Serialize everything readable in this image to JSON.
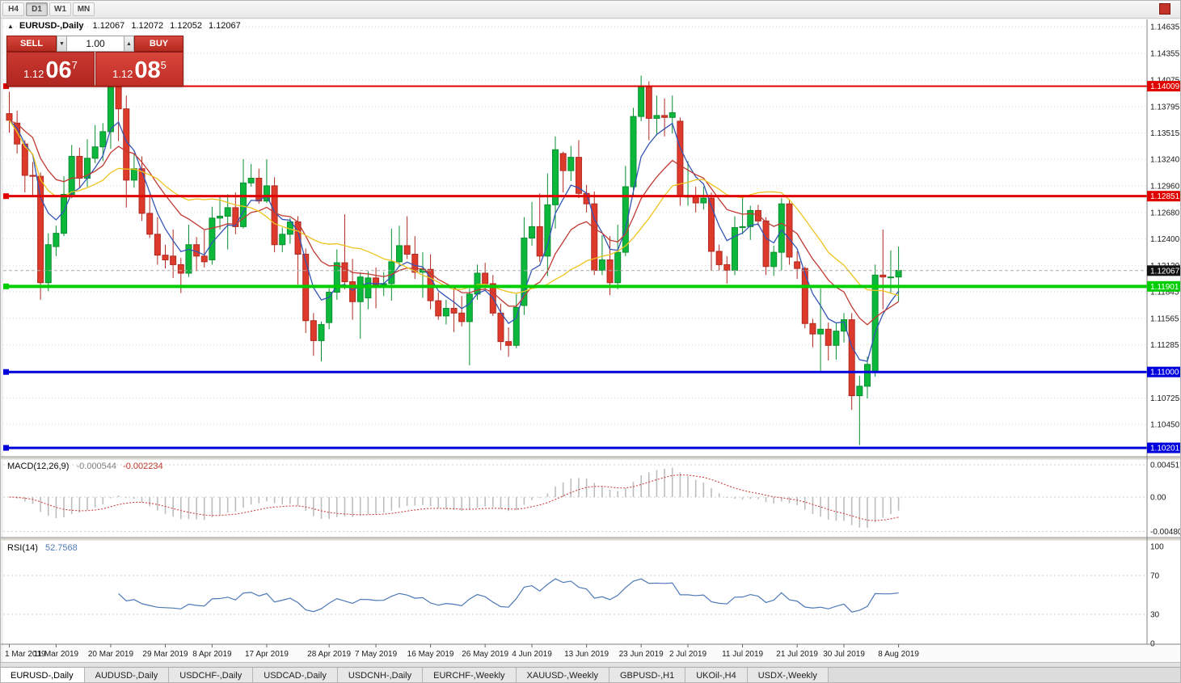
{
  "toolbar": {
    "timeframes": [
      "H4",
      "D1",
      "W1",
      "MN"
    ],
    "active": "D1"
  },
  "chart_title": {
    "symbol": "EURUSD-,Daily",
    "open": "1.12067",
    "high": "1.12072",
    "low": "1.12052",
    "close": "1.12067"
  },
  "trade_panel": {
    "sell_label": "SELL",
    "buy_label": "BUY",
    "volume": "1.00",
    "bid": {
      "big": "1.12",
      "pips": "06",
      "pipette": "7"
    },
    "ask": {
      "big": "1.12",
      "pips": "08",
      "pipette": "5"
    }
  },
  "indicators": {
    "macd_name": "MACD(12,26,9)",
    "macd_main": "-0.000544",
    "macd_signal": "-0.002234",
    "rsi_name": "RSI(14)",
    "rsi_value": "52.7568"
  },
  "tabs": [
    {
      "label": "EURUSD-,Daily",
      "active": true
    },
    {
      "label": "AUDUSD-,Daily",
      "active": false
    },
    {
      "label": "USDCHF-,Daily",
      "active": false
    },
    {
      "label": "USDCAD-,Daily",
      "active": false
    },
    {
      "label": "USDCNH-,Daily",
      "active": false
    },
    {
      "label": "EURCHF-,Weekly",
      "active": false
    },
    {
      "label": "XAUUSD-,Weekly",
      "active": false
    },
    {
      "label": "GBPUSD-,H1",
      "active": false
    },
    {
      "label": "UKOil-,H4",
      "active": false
    },
    {
      "label": "USDX-,Weekly",
      "active": false
    }
  ],
  "chart_data": {
    "type": "candlestick",
    "symbol": "EURUSD-",
    "timeframe": "Daily",
    "colors": {
      "up": "#0cb83c",
      "down": "#dd3a2c",
      "up_stroke": "#0a8f30",
      "down_stroke": "#b02a20",
      "grid": "#d9d9d9",
      "macd_hist": "#bdbdbd",
      "macd_signal": "#d04040",
      "rsi_line": "#4e79b6",
      "current_badge": "#111111"
    },
    "y_ticks": [
      "1.14635",
      "1.14355",
      "1.14075",
      "1.13795",
      "1.13515",
      "1.13240",
      "1.12960",
      "1.12680",
      "1.12400",
      "1.12120",
      "1.11845",
      "1.11565",
      "1.11285",
      "1.11005",
      "1.10725",
      "1.10450"
    ],
    "x_labels": [
      {
        "i": 0,
        "text": "1 Mar 2019"
      },
      {
        "i": 6,
        "text": "11 Mar 2019"
      },
      {
        "i": 13,
        "text": "20 Mar 2019"
      },
      {
        "i": 20,
        "text": "29 Mar 2019"
      },
      {
        "i": 26,
        "text": "8 Apr 2019"
      },
      {
        "i": 33,
        "text": "17 Apr 2019"
      },
      {
        "i": 41,
        "text": "28 Apr 2019"
      },
      {
        "i": 47,
        "text": "7 May 2019"
      },
      {
        "i": 54,
        "text": "16 May 2019"
      },
      {
        "i": 61,
        "text": "26 May 2019"
      },
      {
        "i": 67,
        "text": "4 Jun 2019"
      },
      {
        "i": 74,
        "text": "13 Jun 2019"
      },
      {
        "i": 81,
        "text": "23 Jun 2019"
      },
      {
        "i": 87,
        "text": "2 Jul 2019"
      },
      {
        "i": 94,
        "text": "11 Jul 2019"
      },
      {
        "i": 101,
        "text": "21 Jul 2019"
      },
      {
        "i": 107,
        "text": "30 Jul 2019"
      },
      {
        "i": 114,
        "text": "8 Aug 2019"
      }
    ],
    "candles": [
      [
        1.1372,
        1.1395,
        1.1352,
        1.1365
      ],
      [
        1.1362,
        1.1375,
        1.133,
        1.134
      ],
      [
        1.134,
        1.1344,
        1.1289,
        1.1307
      ],
      [
        1.1307,
        1.1321,
        1.1285,
        1.1306
      ],
      [
        1.1306,
        1.131,
        1.1176,
        1.1194
      ],
      [
        1.1194,
        1.1246,
        1.1185,
        1.1234
      ],
      [
        1.1232,
        1.1254,
        1.1222,
        1.1246
      ],
      [
        1.1246,
        1.1306,
        1.1243,
        1.1287
      ],
      [
        1.1287,
        1.1339,
        1.1283,
        1.1327
      ],
      [
        1.1327,
        1.1336,
        1.1294,
        1.1304
      ],
      [
        1.1304,
        1.1345,
        1.1295,
        1.1325
      ],
      [
        1.1325,
        1.136,
        1.132,
        1.1337
      ],
      [
        1.1337,
        1.1362,
        1.1322,
        1.1353
      ],
      [
        1.1353,
        1.142,
        1.1335,
        1.1413
      ],
      [
        1.1413,
        1.1418,
        1.1343,
        1.1377
      ],
      [
        1.1377,
        1.1391,
        1.1273,
        1.1302
      ],
      [
        1.1302,
        1.133,
        1.1294,
        1.1314
      ],
      [
        1.1314,
        1.1327,
        1.1259,
        1.1267
      ],
      [
        1.1267,
        1.1287,
        1.1241,
        1.1245
      ],
      [
        1.1245,
        1.1263,
        1.1213,
        1.1223
      ],
      [
        1.1223,
        1.1234,
        1.1209,
        1.1218
      ],
      [
        1.1222,
        1.125,
        1.1199,
        1.1213
      ],
      [
        1.1213,
        1.122,
        1.1183,
        1.1204
      ],
      [
        1.1204,
        1.1255,
        1.12,
        1.1234
      ],
      [
        1.1234,
        1.1242,
        1.1206,
        1.1222
      ],
      [
        1.1222,
        1.1249,
        1.121,
        1.1216
      ],
      [
        1.1218,
        1.1274,
        1.1213,
        1.1262
      ],
      [
        1.1262,
        1.1284,
        1.125,
        1.1264
      ],
      [
        1.1264,
        1.1287,
        1.1229,
        1.1273
      ],
      [
        1.1273,
        1.1289,
        1.1245,
        1.1253
      ],
      [
        1.1253,
        1.1324,
        1.1251,
        1.1299
      ],
      [
        1.1299,
        1.1319,
        1.1295,
        1.1304
      ],
      [
        1.1304,
        1.1314,
        1.1277,
        1.128
      ],
      [
        1.128,
        1.1324,
        1.1278,
        1.1296
      ],
      [
        1.1296,
        1.1305,
        1.1226,
        1.1234
      ],
      [
        1.1234,
        1.1252,
        1.1226,
        1.1245
      ],
      [
        1.1245,
        1.1262,
        1.1235,
        1.1258
      ],
      [
        1.1258,
        1.1264,
        1.1192,
        1.1224
      ],
      [
        1.1224,
        1.123,
        1.1141,
        1.1154
      ],
      [
        1.1154,
        1.1162,
        1.1117,
        1.1133
      ],
      [
        1.1133,
        1.1153,
        1.1111,
        1.115
      ],
      [
        1.1152,
        1.1188,
        1.1145,
        1.1184
      ],
      [
        1.1184,
        1.1229,
        1.1176,
        1.1215
      ],
      [
        1.1215,
        1.1266,
        1.1187,
        1.1195
      ],
      [
        1.1195,
        1.1219,
        1.1155,
        1.1174
      ],
      [
        1.1174,
        1.1205,
        1.1135,
        1.12
      ],
      [
        1.1178,
        1.1206,
        1.1166,
        1.1199
      ],
      [
        1.1199,
        1.121,
        1.1167,
        1.1192
      ],
      [
        1.1192,
        1.1205,
        1.118,
        1.1193
      ],
      [
        1.1193,
        1.1251,
        1.1175,
        1.1216
      ],
      [
        1.1216,
        1.1254,
        1.1211,
        1.1233
      ],
      [
        1.1233,
        1.1264,
        1.1219,
        1.1224
      ],
      [
        1.1224,
        1.1243,
        1.1198,
        1.1205
      ],
      [
        1.1205,
        1.1226,
        1.1178,
        1.1208
      ],
      [
        1.1208,
        1.1224,
        1.1166,
        1.1175
      ],
      [
        1.1175,
        1.1184,
        1.1155,
        1.1159
      ],
      [
        1.1159,
        1.1176,
        1.115,
        1.1167
      ],
      [
        1.1167,
        1.1188,
        1.1142,
        1.1162
      ],
      [
        1.1162,
        1.118,
        1.1148,
        1.1153
      ],
      [
        1.1153,
        1.1188,
        1.1107,
        1.1182
      ],
      [
        1.1182,
        1.1213,
        1.1176,
        1.1204
      ],
      [
        1.1204,
        1.1215,
        1.1187,
        1.1193
      ],
      [
        1.1193,
        1.1202,
        1.1159,
        1.1162
      ],
      [
        1.1162,
        1.1172,
        1.1123,
        1.1132
      ],
      [
        1.1132,
        1.1147,
        1.1116,
        1.1128
      ],
      [
        1.1128,
        1.1182,
        1.1125,
        1.1168
      ],
      [
        1.117,
        1.1263,
        1.116,
        1.1241
      ],
      [
        1.1241,
        1.1279,
        1.1233,
        1.1253
      ],
      [
        1.1253,
        1.1288,
        1.1216,
        1.1222
      ],
      [
        1.1222,
        1.1309,
        1.1201,
        1.1276
      ],
      [
        1.1276,
        1.1348,
        1.1251,
        1.1334
      ],
      [
        1.133,
        1.1332,
        1.1289,
        1.1312
      ],
      [
        1.1312,
        1.1338,
        1.1301,
        1.1326
      ],
      [
        1.1326,
        1.1344,
        1.1283,
        1.1288
      ],
      [
        1.1288,
        1.1297,
        1.1268,
        1.1277
      ],
      [
        1.1277,
        1.129,
        1.1202,
        1.1207
      ],
      [
        1.1207,
        1.1244,
        1.1202,
        1.1218
      ],
      [
        1.1218,
        1.1243,
        1.1181,
        1.1194
      ],
      [
        1.1194,
        1.1255,
        1.1187,
        1.1226
      ],
      [
        1.1226,
        1.1317,
        1.1222,
        1.1295
      ],
      [
        1.1295,
        1.1378,
        1.1285,
        1.1369
      ],
      [
        1.1369,
        1.1412,
        1.1364,
        1.14
      ],
      [
        1.14,
        1.1406,
        1.1344,
        1.1367
      ],
      [
        1.1367,
        1.1391,
        1.1349,
        1.137
      ],
      [
        1.137,
        1.1388,
        1.1348,
        1.1368
      ],
      [
        1.1368,
        1.1391,
        1.1351,
        1.1373
      ],
      [
        1.1364,
        1.1368,
        1.1275,
        1.1285
      ],
      [
        1.1285,
        1.1322,
        1.1275,
        1.1285
      ],
      [
        1.1285,
        1.1295,
        1.1268,
        1.1278
      ],
      [
        1.1278,
        1.1295,
        1.1271,
        1.1283
      ],
      [
        1.1283,
        1.1289,
        1.1207,
        1.1227
      ],
      [
        1.1227,
        1.1234,
        1.1207,
        1.1213
      ],
      [
        1.1213,
        1.1222,
        1.1193,
        1.1207
      ],
      [
        1.1207,
        1.1264,
        1.1202,
        1.1252
      ],
      [
        1.1252,
        1.1286,
        1.1245,
        1.1253
      ],
      [
        1.1253,
        1.1275,
        1.1239,
        1.127
      ],
      [
        1.127,
        1.1276,
        1.1254,
        1.1259
      ],
      [
        1.1259,
        1.1263,
        1.1202,
        1.1211
      ],
      [
        1.1211,
        1.1233,
        1.1201,
        1.1226
      ],
      [
        1.1226,
        1.1283,
        1.1207,
        1.1277
      ],
      [
        1.1277,
        1.1282,
        1.1213,
        1.1221
      ],
      [
        1.1216,
        1.1227,
        1.1198,
        1.1209
      ],
      [
        1.1209,
        1.1211,
        1.1146,
        1.1151
      ],
      [
        1.1151,
        1.1156,
        1.1126,
        1.114
      ],
      [
        1.114,
        1.1188,
        1.1101,
        1.1145
      ],
      [
        1.1145,
        1.1152,
        1.1112,
        1.1128
      ],
      [
        1.1128,
        1.1151,
        1.1113,
        1.1143
      ],
      [
        1.1143,
        1.1162,
        1.1131,
        1.1155
      ],
      [
        1.1155,
        1.1162,
        1.106,
        1.1075
      ],
      [
        1.1075,
        1.1096,
        1.1023,
        1.1085
      ],
      [
        1.1085,
        1.1116,
        1.1072,
        1.1108
      ],
      [
        1.11,
        1.1213,
        1.1095,
        1.1202
      ],
      [
        1.1202,
        1.125,
        1.1166,
        1.12
      ],
      [
        1.12,
        1.1228,
        1.1183,
        1.12
      ],
      [
        1.12,
        1.1232,
        1.1174,
        1.1207
      ]
    ],
    "moving_averages": [
      {
        "period": 5,
        "method": "ema",
        "color": "#3355b4"
      },
      {
        "period": 13,
        "method": "ema",
        "color": "#c03a32"
      },
      {
        "period": 20,
        "method": "sma",
        "color": "#edc41f"
      }
    ],
    "hlines": [
      {
        "price": 1.14009,
        "label": "1.14009",
        "color": "#e00000",
        "width": 2
      },
      {
        "price": 1.12851,
        "label": "1.12851",
        "color": "#e00000",
        "width": 3
      },
      {
        "price": 1.11901,
        "label": "1.11901",
        "color": "#00ce00",
        "width": 4
      },
      {
        "price": 1.11,
        "label": "1.11000",
        "color": "#0000dc",
        "width": 3
      },
      {
        "price": 1.10201,
        "label": "1.10201",
        "color": "#0000dc",
        "width": 3
      }
    ],
    "current_price": {
      "value": 1.12067,
      "label": "1.12067"
    },
    "macd": {
      "fast": 12,
      "slow": 26,
      "signal": 9,
      "main_value": -0.000544,
      "signal_value": -0.002234,
      "axis_ticks": [
        {
          "v": 0.004517,
          "label": "0.004517"
        },
        {
          "v": 0,
          "label": "0.00"
        },
        {
          "v": -0.004806,
          "label": "-0.004806"
        }
      ]
    },
    "rsi": {
      "period": 14,
      "value": 52.7568,
      "axis_ticks": [
        {
          "v": 100,
          "label": "100"
        },
        {
          "v": 70,
          "label": "70"
        },
        {
          "v": 30,
          "label": "30"
        },
        {
          "v": 0,
          "label": "0"
        }
      ],
      "levels": [
        70,
        30
      ]
    }
  }
}
